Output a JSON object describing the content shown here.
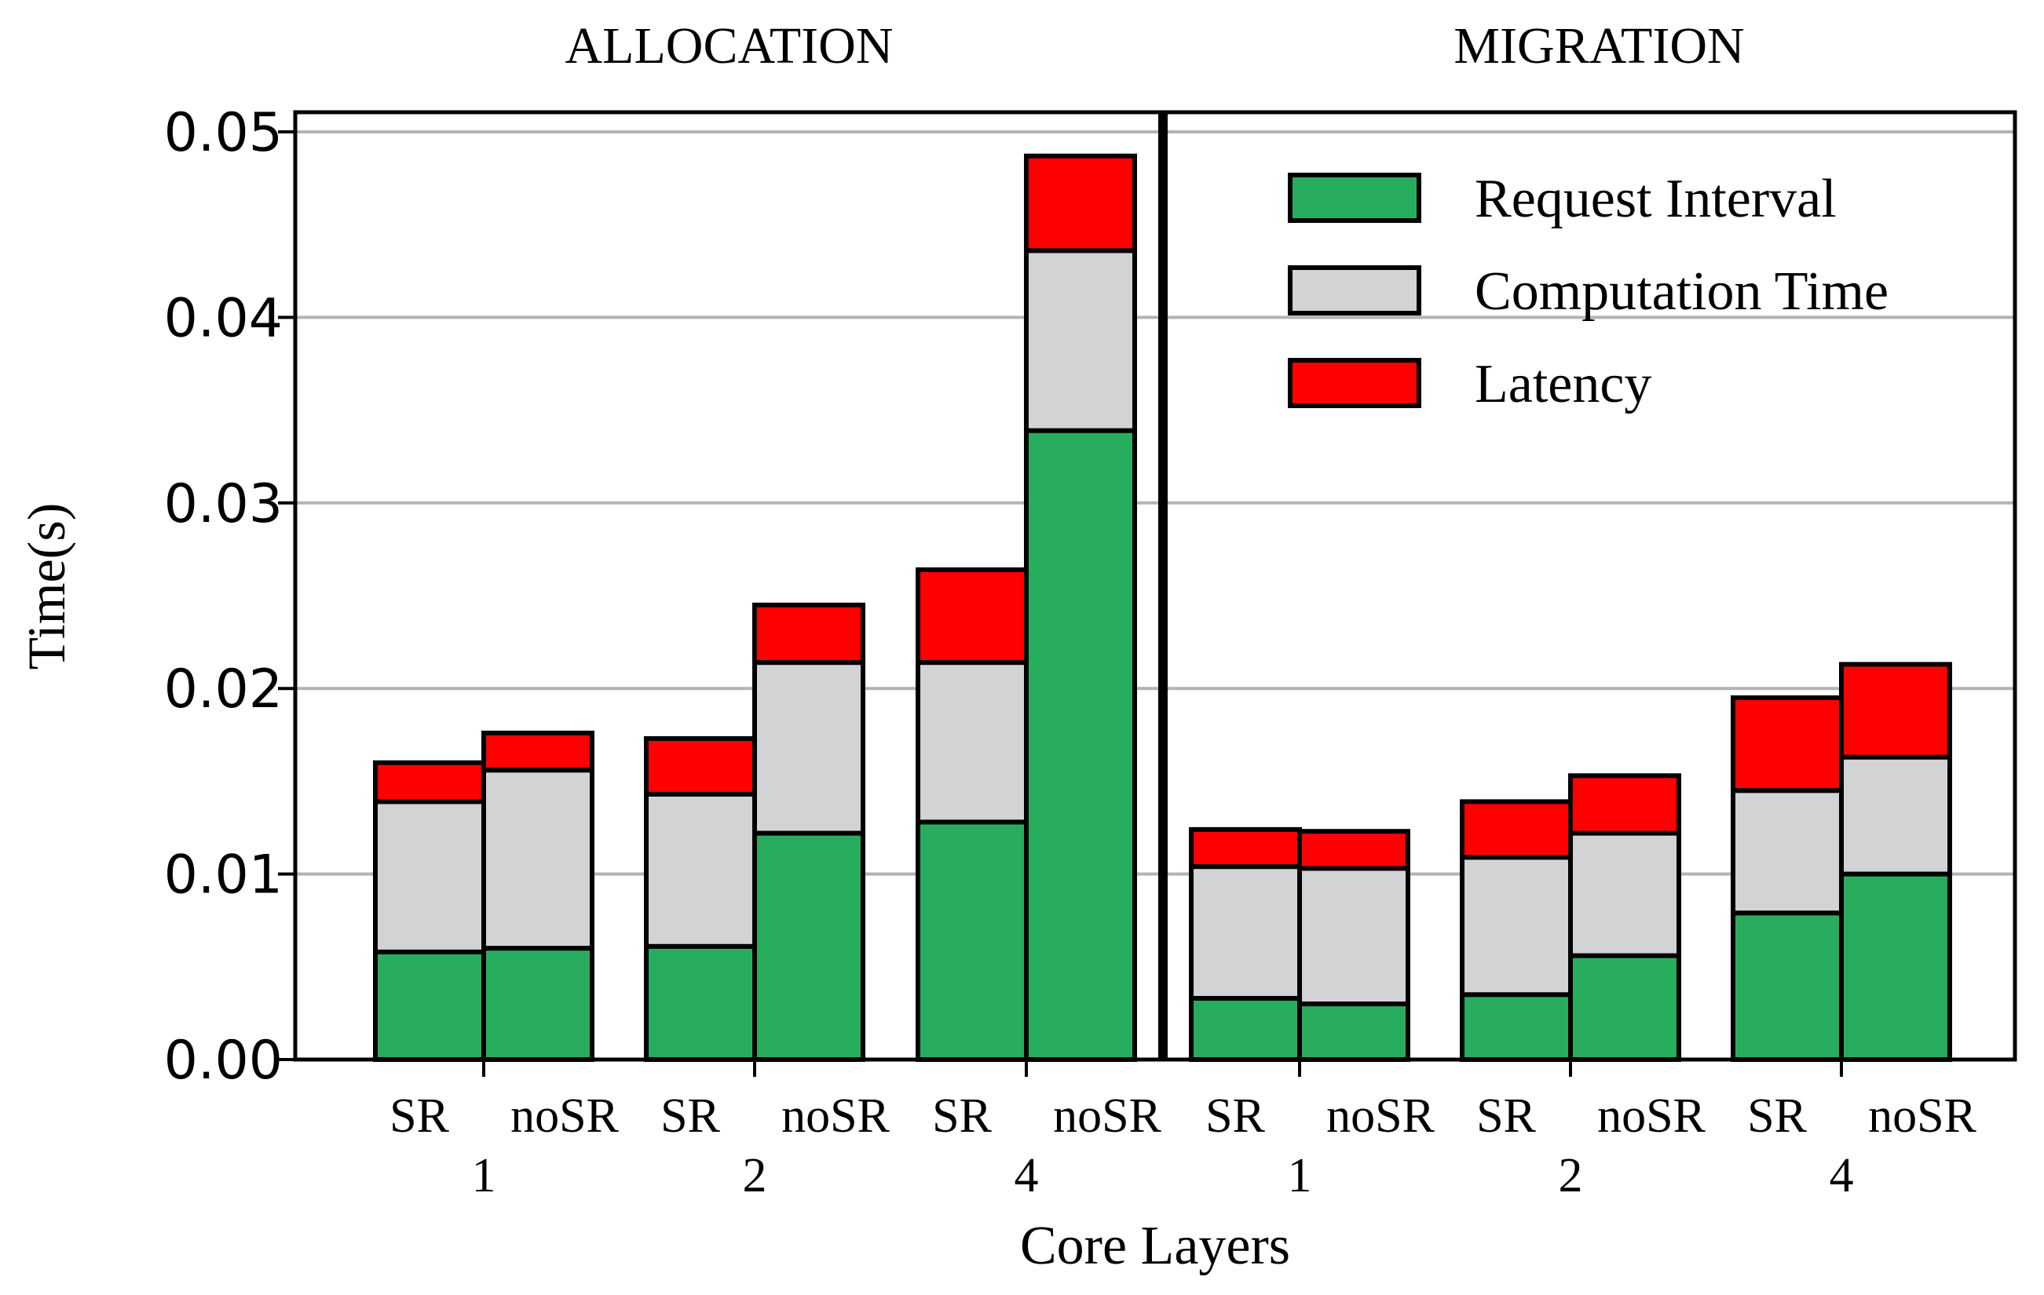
{
  "chart_data": {
    "type": "bar",
    "stacked": true,
    "ylabel": "Time(s)",
    "xlabel": "Core Layers",
    "ylim": [
      0,
      0.05
    ],
    "yticks": [
      "0.00",
      "0.01",
      "0.02",
      "0.03",
      "0.04",
      "0.05"
    ],
    "ytick_values": [
      0,
      0.01,
      0.02,
      0.03,
      0.04,
      0.05
    ],
    "grid": true,
    "legend_position": "top-right",
    "colors": {
      "Request Interval": "#28ad5f",
      "Computation Time": "#d1d3d4",
      "Latency": "#fe0000"
    },
    "series_names": [
      "Request Interval",
      "Computation Time",
      "Latency"
    ],
    "panels": [
      {
        "title": "ALLOCATION",
        "groups": [
          {
            "layers": "1",
            "bars": [
              {
                "label": "SR",
                "values": [
                  0.0058,
                  0.0081,
                  0.0021
                ]
              },
              {
                "label": "noSR",
                "values": [
                  0.006,
                  0.0096,
                  0.002
                ]
              }
            ]
          },
          {
            "layers": "2",
            "bars": [
              {
                "label": "SR",
                "values": [
                  0.0061,
                  0.0082,
                  0.003
                ]
              },
              {
                "label": "noSR",
                "values": [
                  0.0122,
                  0.0092,
                  0.0031
                ]
              }
            ]
          },
          {
            "layers": "4",
            "bars": [
              {
                "label": "SR",
                "values": [
                  0.0128,
                  0.0086,
                  0.005
                ]
              },
              {
                "label": "noSR",
                "values": [
                  0.0339,
                  0.0097,
                  0.0051
                ]
              }
            ]
          }
        ]
      },
      {
        "title": "MIGRATION",
        "groups": [
          {
            "layers": "1",
            "bars": [
              {
                "label": "SR",
                "values": [
                  0.0033,
                  0.0071,
                  0.002
                ]
              },
              {
                "label": "noSR",
                "values": [
                  0.003,
                  0.0073,
                  0.002
                ]
              }
            ]
          },
          {
            "layers": "2",
            "bars": [
              {
                "label": "SR",
                "values": [
                  0.0035,
                  0.0074,
                  0.003
                ]
              },
              {
                "label": "noSR",
                "values": [
                  0.0056,
                  0.0066,
                  0.0031
                ]
              }
            ]
          },
          {
            "layers": "4",
            "bars": [
              {
                "label": "SR",
                "values": [
                  0.0079,
                  0.0066,
                  0.005
                ]
              },
              {
                "label": "noSR",
                "values": [
                  0.01,
                  0.0063,
                  0.005
                ]
              }
            ]
          }
        ]
      }
    ]
  }
}
